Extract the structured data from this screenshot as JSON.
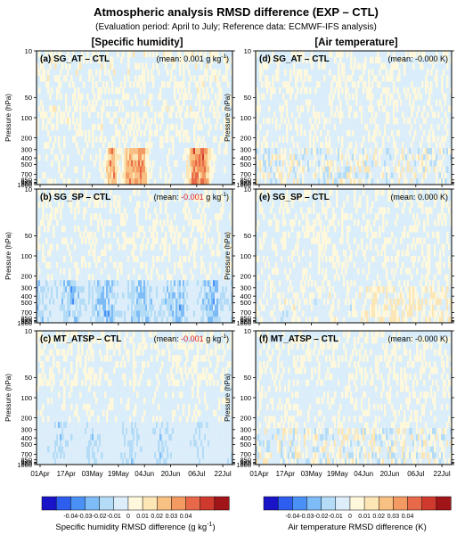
{
  "title": "Atmospheric analysis RMSD difference (EXP – CTL)",
  "subtitle": "(Evaluation period: April to July; Reference data: ECMWF-IFS analysis)",
  "columns": [
    "[Specific humidity]",
    "[Air temperature]"
  ],
  "ylabel": "Pressure (hPa)",
  "pressure_levels": [
    10,
    50,
    100,
    200,
    300,
    400,
    500,
    700,
    850,
    925,
    950,
    1000
  ],
  "pressure_labels": [
    "10",
    "50",
    "100",
    "200",
    "300",
    "400",
    "500",
    "700",
    "850",
    "925",
    "950",
    "1000"
  ],
  "x_ticks": [
    "01Apr",
    "17Apr",
    "03May",
    "19May",
    "04Jun",
    "20Jun",
    "06Jul",
    "22Jul"
  ],
  "colorbars": [
    {
      "label_main": "Specific humidity RMSD difference (g kg",
      "label_sup": "-1",
      "label_end": ")",
      "ticks": [
        "-0.04",
        "-0.03",
        "-0.02",
        "-0.01",
        "0",
        "0.01",
        "0.02",
        "0.03",
        "0.04"
      ],
      "colors": [
        "#1a14c8",
        "#2d5ef0",
        "#4a90f5",
        "#7dbcf7",
        "#b4dcf7",
        "#ddeefa",
        "#fff8dc",
        "#fde6b6",
        "#f9c084",
        "#f29a62",
        "#e8694a",
        "#d03a2e",
        "#a11418"
      ]
    },
    {
      "label_main": "Air temperature RMSD difference (K)",
      "label_sup": "",
      "label_end": "",
      "ticks": [
        "-0.04",
        "-0.03",
        "-0.02",
        "-0.01",
        "0",
        "0.01",
        "0.02",
        "0.03",
        "0.04"
      ],
      "colors": [
        "#1a14c8",
        "#2d5ef0",
        "#4a90f5",
        "#7dbcf7",
        "#b4dcf7",
        "#ddeefa",
        "#fff8dc",
        "#fde6b6",
        "#f9c084",
        "#f29a62",
        "#e8694a",
        "#d03a2e",
        "#a11418"
      ]
    }
  ],
  "chart_data": [
    {
      "type": "heatmap",
      "panel": "(a) SG_AT – CTL",
      "variable": "Specific humidity",
      "mean_prefix": "(mean: ",
      "mean_value": "0.001",
      "mean_suffix": " g kg",
      "mean_sup": "-1",
      "mean_close": ")",
      "mean_negative": false,
      "pattern": "warm_low_strong"
    },
    {
      "type": "heatmap",
      "panel": "(d) SG_AT – CTL",
      "variable": "Air temperature",
      "mean_prefix": "(mean: ",
      "mean_value": "-0.000",
      "mean_suffix": " K",
      "mean_sup": "",
      "mean_close": ")",
      "mean_negative": false,
      "pattern": "mixed"
    },
    {
      "type": "heatmap",
      "panel": "(b) SG_SP – CTL",
      "variable": "Specific humidity",
      "mean_prefix": "(mean: ",
      "mean_value": "-0.001",
      "mean_suffix": " g kg",
      "mean_sup": "-1",
      "mean_close": ")",
      "mean_negative": true,
      "pattern": "cool_low"
    },
    {
      "type": "heatmap",
      "panel": "(e) SG_SP – CTL",
      "variable": "Air temperature",
      "mean_prefix": "(mean: ",
      "mean_value": "0.000",
      "mean_suffix": " K",
      "mean_sup": "",
      "mean_close": ")",
      "mean_negative": false,
      "pattern": "warm_low"
    },
    {
      "type": "heatmap",
      "panel": "(c) MT_ATSP – CTL",
      "variable": "Specific humidity",
      "mean_prefix": "(mean: ",
      "mean_value": "-0.001",
      "mean_suffix": " g kg",
      "mean_sup": "-1",
      "mean_close": ")",
      "mean_negative": true,
      "pattern": "cool_low_weak"
    },
    {
      "type": "heatmap",
      "panel": "(f) MT_ATSP – CTL",
      "variable": "Air temperature",
      "mean_prefix": "(mean: ",
      "mean_value": "-0.000",
      "mean_suffix": " K",
      "mean_sup": "",
      "mean_close": ")",
      "mean_negative": false,
      "pattern": "mixed"
    }
  ]
}
